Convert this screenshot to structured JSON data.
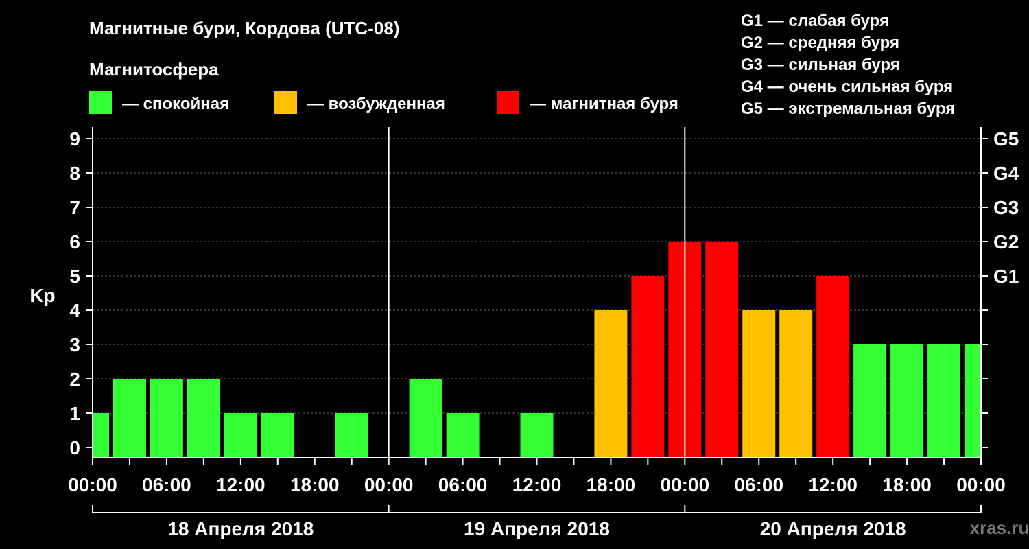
{
  "header": {
    "title": "Магнитные бури, Кордова (UTC-08)",
    "legend_title": "Магнитосфера",
    "legend": [
      {
        "label": "— спокойная",
        "color": "#33ff33"
      },
      {
        "label": "— возбужденная",
        "color": "#ffc000"
      },
      {
        "label": "— магнитная буря",
        "color": "#ff0000"
      }
    ],
    "g_scale": [
      "G1 — слабая буря",
      "G2 — средняя буря",
      "G3 — сильная буря",
      "G4 — очень сильная буря",
      "G5 — экстремальная буря"
    ]
  },
  "chart_data": {
    "type": "bar",
    "ylabel": "Kp",
    "ylim": [
      0,
      9
    ],
    "y_ticks": [
      "0",
      "1",
      "2",
      "3",
      "4",
      "5",
      "6",
      "7",
      "8",
      "9"
    ],
    "right_ticks": [
      {
        "value": 5,
        "label": "G1"
      },
      {
        "value": 6,
        "label": "G2"
      },
      {
        "value": 7,
        "label": "G3"
      },
      {
        "value": 8,
        "label": "G4"
      },
      {
        "value": 9,
        "label": "G5"
      }
    ],
    "x_tick_labels": [
      "00:00",
      "06:00",
      "12:00",
      "18:00",
      "00:00",
      "06:00",
      "12:00",
      "18:00",
      "00:00",
      "06:00",
      "12:00",
      "18:00",
      "00:00"
    ],
    "days": [
      "18 Апреля 2018",
      "19 Апреля 2018",
      "20 Апреля 2018"
    ],
    "grid": true,
    "colors": {
      "quiet": "#33ff33",
      "active": "#ffc000",
      "storm": "#ff0000"
    },
    "start_time": "18 Апреля 2018 00:00",
    "bar_hours": 3,
    "values": [
      1,
      2,
      2,
      2,
      1,
      1,
      0,
      1,
      0,
      2,
      1,
      0,
      1,
      0,
      4,
      5,
      6,
      6,
      4,
      4,
      5,
      3,
      3,
      3,
      3
    ]
  },
  "watermark": "xras.ru"
}
